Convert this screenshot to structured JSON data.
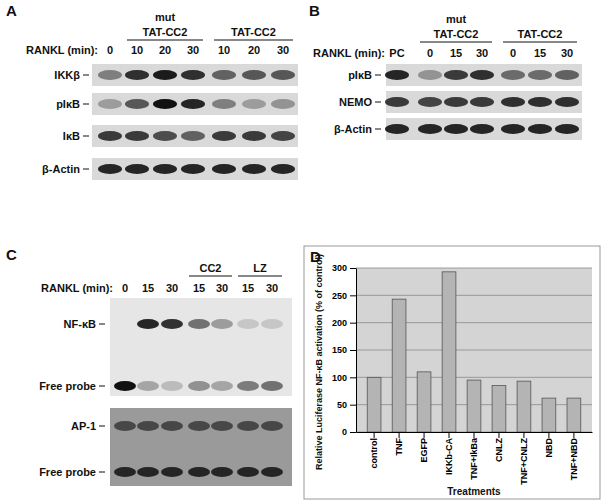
{
  "panels": [
    {
      "label": "A",
      "groups": [
        {
          "lines": [
            "mut",
            "TAT-CC2"
          ]
        },
        {
          "lines": [
            "TAT-CC2"
          ]
        }
      ],
      "lane_title": "RANKL (min):",
      "lanes": [
        0,
        10,
        20,
        30,
        10,
        20,
        30
      ],
      "rows": [
        "IKKβ",
        "pIκB",
        "IκB",
        "β-Actin"
      ]
    },
    {
      "label": "B",
      "groups": [
        {
          "lines": [
            "mut",
            "TAT-CC2"
          ]
        },
        {
          "lines": [
            "TAT-CC2"
          ]
        }
      ],
      "lane_title": "RANKL (min):",
      "lanes": [
        "PC",
        0,
        15,
        30,
        0,
        15,
        30
      ],
      "rows": [
        "pIκB",
        "NEMO",
        "β-Actin"
      ]
    },
    {
      "label": "C",
      "groups": [
        {
          "lines": [
            "CC2"
          ]
        },
        {
          "lines": [
            "LZ"
          ]
        }
      ],
      "lane_title": "RANKL (min):",
      "lanes": [
        0,
        15,
        30,
        15,
        30,
        15,
        30
      ],
      "gels": [
        {
          "rows": [
            "NF-κB",
            "Free probe"
          ]
        },
        {
          "rows": [
            "AP-1",
            "Free probe"
          ]
        }
      ]
    }
  ],
  "chart_data": {
    "type": "bar",
    "panel_label": "D",
    "x_label": "Treatments",
    "y_label": "Relative Luciferase NF-κB activation (% of control)",
    "categories": [
      "control",
      "TNF",
      "EGFP",
      "IKKb-CA",
      "TNF+IkBa",
      "CNLZ",
      "TNF+CNLZ",
      "NBD",
      "TNF+NBD"
    ],
    "values": [
      100,
      243,
      110,
      293,
      95,
      85,
      93,
      62,
      62
    ],
    "color": "#b4b4b4",
    "ylim": [
      0,
      300
    ],
    "yticks": [
      0,
      50,
      100,
      150,
      200,
      250,
      300
    ],
    "grid": true
  }
}
